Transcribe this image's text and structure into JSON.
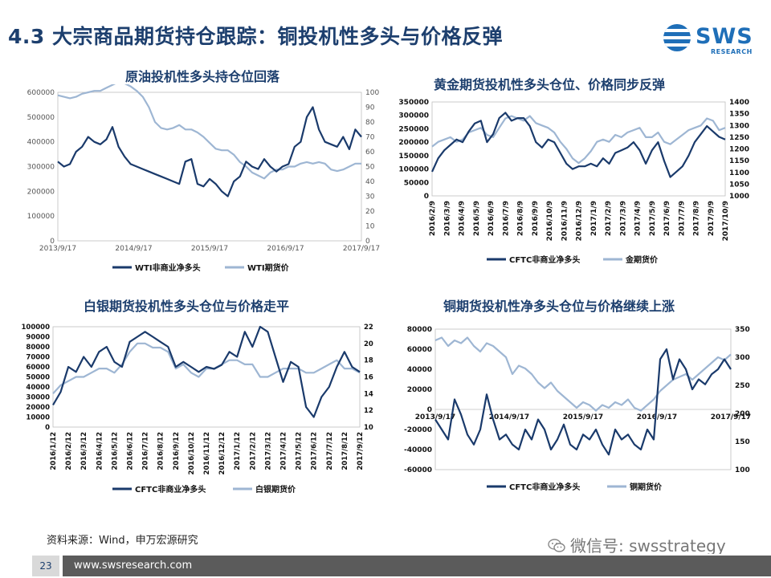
{
  "page": {
    "title": "4.3 大宗商品期货持仓跟踪：铜投机性多头与价格反弹",
    "logo_text": "SWS",
    "logo_sub": "RESEARCH",
    "source": "资料来源：Wind，申万宏源研究",
    "wechat": "微信号: swsstrategy",
    "page_number": "23",
    "url": "www.swsresearch.com",
    "colors": {
      "dark_series": "#1a3a6b",
      "light_series": "#9eb6d3",
      "title": "#1d3f6e",
      "brand": "#1f6fb8"
    }
  },
  "chart_data": [
    {
      "type": "line",
      "title": "原油投机性多头持仓位回落",
      "x_tick_labels": [
        "2013/9/17",
        "2014/9/17",
        "2015/9/17",
        "2016/9/17",
        "2017/9/17"
      ],
      "y_left_ticks": [
        "600000",
        "500000",
        "400000",
        "300000",
        "200000",
        "100000",
        "0"
      ],
      "y_right_ticks": [
        "100",
        "90",
        "80",
        "70",
        "60",
        "50",
        "40",
        "30",
        "20",
        "10",
        "0"
      ],
      "ylim_left": [
        0,
        600000
      ],
      "ylim_right": [
        0,
        100
      ],
      "series": [
        {
          "name": "WTI非商业净多头",
          "axis": "left",
          "color": "#1a3a6b",
          "values": [
            320000,
            300000,
            310000,
            360000,
            380000,
            420000,
            400000,
            390000,
            410000,
            460000,
            380000,
            340000,
            310000,
            300000,
            290000,
            280000,
            270000,
            260000,
            250000,
            240000,
            230000,
            320000,
            330000,
            230000,
            220000,
            250000,
            230000,
            200000,
            180000,
            240000,
            260000,
            320000,
            300000,
            290000,
            330000,
            300000,
            280000,
            300000,
            310000,
            380000,
            400000,
            500000,
            540000,
            450000,
            400000,
            390000,
            380000,
            420000,
            370000,
            450000,
            420000
          ]
        },
        {
          "name": "WTI期货价",
          "axis": "right",
          "color": "#9eb6d3",
          "values": [
            98,
            97,
            96,
            97,
            99,
            100,
            101,
            101,
            103,
            105,
            107,
            106,
            104,
            101,
            97,
            90,
            80,
            76,
            75,
            76,
            78,
            75,
            75,
            73,
            70,
            66,
            62,
            61,
            61,
            58,
            53,
            50,
            46,
            44,
            42,
            46,
            48,
            48,
            50,
            50,
            52,
            53,
            52,
            53,
            52,
            48,
            47,
            48,
            50,
            52,
            52
          ]
        }
      ],
      "legend": [
        "WTI非商业净多头",
        "WTI期货价"
      ]
    },
    {
      "type": "line",
      "title": "黄金期货投机性多头仓位、价格同步反弹",
      "x_tick_labels": [
        "2016/2/9",
        "2016/3/9",
        "2016/4/9",
        "2016/5/9",
        "2016/6/9",
        "2016/7/9",
        "2016/8/9",
        "2016/9/9",
        "2016/10/9",
        "2016/11/9",
        "2016/12/9",
        "2017/1/9",
        "2017/2/9",
        "2017/3/9",
        "2017/4/9",
        "2017/5/9",
        "2017/6/9",
        "2017/7/9",
        "2017/8/9",
        "2017/9/9",
        "2017/10/9"
      ],
      "y_left_ticks": [
        "350000",
        "300000",
        "250000",
        "200000",
        "150000",
        "100000",
        "50000",
        "0"
      ],
      "y_right_ticks": [
        "1400",
        "1350",
        "1300",
        "1250",
        "1200",
        "1150",
        "1100",
        "1050",
        "1000"
      ],
      "ylim_left": [
        0,
        350000
      ],
      "ylim_right": [
        1000,
        1400
      ],
      "series": [
        {
          "name": "CFTC非商业净多头",
          "axis": "left",
          "color": "#1a3a6b",
          "values": [
            90000,
            140000,
            170000,
            190000,
            210000,
            200000,
            240000,
            270000,
            280000,
            200000,
            230000,
            290000,
            310000,
            280000,
            290000,
            290000,
            260000,
            200000,
            180000,
            210000,
            200000,
            160000,
            120000,
            100000,
            110000,
            110000,
            120000,
            110000,
            140000,
            120000,
            160000,
            170000,
            180000,
            200000,
            170000,
            120000,
            170000,
            200000,
            130000,
            70000,
            90000,
            110000,
            150000,
            200000,
            230000,
            260000,
            240000,
            220000,
            210000
          ]
        },
        {
          "name": "金期货价",
          "axis": "right",
          "color": "#9eb6d3",
          "values": [
            1210,
            1230,
            1240,
            1250,
            1230,
            1240,
            1270,
            1280,
            1290,
            1260,
            1250,
            1290,
            1330,
            1340,
            1330,
            1320,
            1340,
            1310,
            1300,
            1290,
            1270,
            1230,
            1200,
            1160,
            1140,
            1160,
            1190,
            1230,
            1240,
            1230,
            1260,
            1250,
            1270,
            1280,
            1290,
            1250,
            1250,
            1270,
            1230,
            1220,
            1240,
            1260,
            1280,
            1290,
            1300,
            1330,
            1320,
            1280,
            1290
          ]
        }
      ],
      "legend": [
        "CFTC非商业净多头",
        "金期货价"
      ]
    },
    {
      "type": "line",
      "title": "白银期货投机性多头仓位与价格走平",
      "x_tick_labels": [
        "2016/1/12",
        "2016/2/12",
        "2016/3/12",
        "2016/4/12",
        "2016/5/12",
        "2016/6/12",
        "2016/7/12",
        "2016/8/12",
        "2016/9/12",
        "2016/10/12",
        "2016/11/12",
        "2016/12/12",
        "2017/1/12",
        "2017/2/12",
        "2017/3/12",
        "2017/4/12",
        "2017/5/12",
        "2017/6/12",
        "2017/7/12",
        "2017/8/12",
        "2017/9/12"
      ],
      "y_left_ticks": [
        "100000",
        "90000",
        "80000",
        "70000",
        "60000",
        "50000",
        "40000",
        "30000",
        "20000",
        "10000",
        "0"
      ],
      "y_right_ticks": [
        "22",
        "20",
        "18",
        "16",
        "14",
        "12",
        "10"
      ],
      "ylim_left": [
        0,
        100000
      ],
      "ylim_right": [
        10,
        22
      ],
      "series": [
        {
          "name": "CFTC非商业净多头",
          "axis": "left",
          "color": "#1a3a6b",
          "values": [
            22000,
            35000,
            60000,
            55000,
            70000,
            60000,
            75000,
            80000,
            65000,
            60000,
            85000,
            90000,
            95000,
            90000,
            85000,
            80000,
            60000,
            65000,
            60000,
            55000,
            60000,
            58000,
            62000,
            75000,
            70000,
            95000,
            80000,
            100000,
            95000,
            70000,
            45000,
            65000,
            60000,
            20000,
            10000,
            30000,
            40000,
            60000,
            75000,
            60000,
            55000
          ]
        },
        {
          "name": "白银期货价",
          "axis": "right",
          "color": "#9eb6d3",
          "values": [
            14,
            15,
            15.5,
            16,
            16,
            16.5,
            17,
            17,
            16.5,
            17.5,
            19,
            20,
            20,
            19.5,
            19.5,
            19,
            17,
            17.5,
            16.5,
            16,
            17,
            17,
            17.5,
            18,
            18,
            17.5,
            17.5,
            16,
            16,
            16.5,
            17,
            17,
            17,
            16.5,
            16.5,
            17,
            17.5,
            18,
            17,
            17,
            16.5
          ]
        }
      ],
      "legend": [
        "CFTC非商业净多头",
        "白银期货价"
      ]
    },
    {
      "type": "line",
      "title": "铜期货投机性净多头仓位与价格继续上涨",
      "x_tick_labels": [
        "2013/9/17",
        "2014/9/17",
        "2015/9/17",
        "2016/9/17",
        "2017/9/17"
      ],
      "y_left_ticks": [
        "80000",
        "60000",
        "40000",
        "20000",
        "0",
        "-20000",
        "-40000",
        "-60000"
      ],
      "y_right_ticks": [
        "350",
        "300",
        "250",
        "200",
        "150",
        "100"
      ],
      "ylim_left": [
        -60000,
        80000
      ],
      "ylim_right": [
        100,
        350
      ],
      "series": [
        {
          "name": "CFTC非商业净多头",
          "axis": "left",
          "color": "#1a3a6b",
          "values": [
            -10000,
            -20000,
            -30000,
            10000,
            -5000,
            -25000,
            -35000,
            -20000,
            15000,
            -10000,
            -30000,
            -25000,
            -35000,
            -40000,
            -20000,
            -30000,
            -10000,
            -20000,
            -40000,
            -30000,
            -15000,
            -35000,
            -40000,
            -25000,
            -30000,
            -20000,
            -35000,
            -45000,
            -20000,
            -30000,
            -25000,
            -35000,
            -40000,
            -20000,
            -30000,
            50000,
            60000,
            30000,
            50000,
            40000,
            20000,
            30000,
            25000,
            35000,
            40000,
            50000,
            40000
          ]
        },
        {
          "name": "铜期货价",
          "axis": "right",
          "color": "#9eb6d3",
          "values": [
            330,
            335,
            320,
            330,
            325,
            335,
            320,
            310,
            325,
            320,
            310,
            300,
            270,
            285,
            280,
            270,
            255,
            245,
            255,
            240,
            230,
            220,
            210,
            220,
            215,
            205,
            215,
            210,
            220,
            215,
            225,
            210,
            205,
            215,
            225,
            240,
            250,
            260,
            265,
            270,
            260,
            270,
            280,
            290,
            300,
            295,
            305
          ]
        }
      ],
      "legend": [
        "CFTC非商业净多头",
        "铜期货价"
      ]
    }
  ]
}
